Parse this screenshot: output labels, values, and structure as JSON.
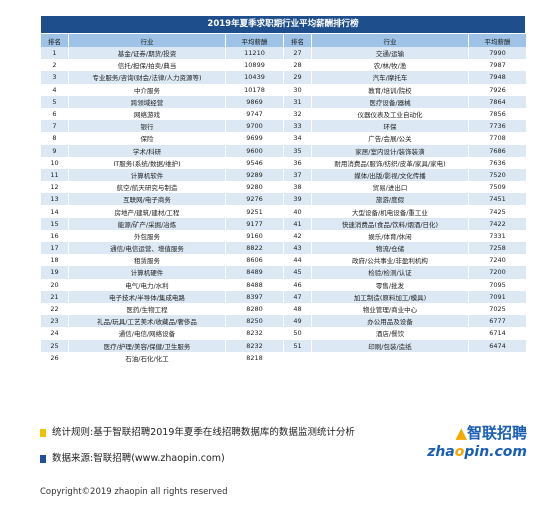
{
  "table": {
    "title": "2019年夏季求职期行业平均薪酬排行榜",
    "headers": [
      "排名",
      "行业",
      "平均薪酬",
      "排名",
      "行业",
      "平均薪酬"
    ],
    "left": [
      {
        "rank": "1",
        "industry": "基金/证券/期货/投资",
        "salary": "11210"
      },
      {
        "rank": "2",
        "industry": "信托/担保/拍卖/典当",
        "salary": "10899"
      },
      {
        "rank": "3",
        "industry": "专业服务/咨询(财会/法律/人力资源等)",
        "salary": "10439"
      },
      {
        "rank": "4",
        "industry": "中介服务",
        "salary": "10178"
      },
      {
        "rank": "5",
        "industry": "跨领域经营",
        "salary": "9869"
      },
      {
        "rank": "6",
        "industry": "网络游戏",
        "salary": "9747"
      },
      {
        "rank": "7",
        "industry": "银行",
        "salary": "9700"
      },
      {
        "rank": "8",
        "industry": "保险",
        "salary": "9699"
      },
      {
        "rank": "9",
        "industry": "学术/科研",
        "salary": "9600"
      },
      {
        "rank": "10",
        "industry": "IT服务(系统/数据/维护)",
        "salary": "9546"
      },
      {
        "rank": "11",
        "industry": "计算机软件",
        "salary": "9289"
      },
      {
        "rank": "12",
        "industry": "航空/航天研究与制造",
        "salary": "9280"
      },
      {
        "rank": "13",
        "industry": "互联网/电子商务",
        "salary": "9276"
      },
      {
        "rank": "14",
        "industry": "房地产/建筑/建材/工程",
        "salary": "9251"
      },
      {
        "rank": "15",
        "industry": "能源/矿产/采掘/冶炼",
        "salary": "9177"
      },
      {
        "rank": "16",
        "industry": "外包服务",
        "salary": "9160"
      },
      {
        "rank": "17",
        "industry": "通信/电信运营、增值服务",
        "salary": "8822"
      },
      {
        "rank": "18",
        "industry": "租赁服务",
        "salary": "8606"
      },
      {
        "rank": "19",
        "industry": "计算机硬件",
        "salary": "8489"
      },
      {
        "rank": "20",
        "industry": "电气/电力/水利",
        "salary": "8488"
      },
      {
        "rank": "21",
        "industry": "电子技术/半导体/集成电路",
        "salary": "8397"
      },
      {
        "rank": "22",
        "industry": "医药/生物工程",
        "salary": "8280"
      },
      {
        "rank": "23",
        "industry": "礼品/玩具/工艺美术/收藏品/奢侈品",
        "salary": "8250"
      },
      {
        "rank": "24",
        "industry": "通信/电信/网络设备",
        "salary": "8232"
      },
      {
        "rank": "25",
        "industry": "医疗/护理/美容/保健/卫生服务",
        "salary": "8232"
      },
      {
        "rank": "26",
        "industry": "石油/石化/化工",
        "salary": "8218"
      }
    ],
    "right": [
      {
        "rank": "27",
        "industry": "交通/运输",
        "salary": "7990"
      },
      {
        "rank": "28",
        "industry": "农/林/牧/渔",
        "salary": "7987"
      },
      {
        "rank": "29",
        "industry": "汽车/摩托车",
        "salary": "7948"
      },
      {
        "rank": "30",
        "industry": "教育/培训/院校",
        "salary": "7926"
      },
      {
        "rank": "31",
        "industry": "医疗设备/器械",
        "salary": "7864"
      },
      {
        "rank": "32",
        "industry": "仪器仪表及工业自动化",
        "salary": "7856"
      },
      {
        "rank": "33",
        "industry": "环保",
        "salary": "7736"
      },
      {
        "rank": "34",
        "industry": "广告/会展/公关",
        "salary": "7708"
      },
      {
        "rank": "35",
        "industry": "家居/室内设计/装饰装潢",
        "salary": "7686"
      },
      {
        "rank": "36",
        "industry": "耐用消费品(服饰/纺织/皮革/家具/家电)",
        "salary": "7636"
      },
      {
        "rank": "37",
        "industry": "媒体/出版/影视/文化传播",
        "salary": "7520"
      },
      {
        "rank": "38",
        "industry": "贸易/进出口",
        "salary": "7509"
      },
      {
        "rank": "39",
        "industry": "旅游/度假",
        "salary": "7451"
      },
      {
        "rank": "40",
        "industry": "大型设备/机电设备/重工业",
        "salary": "7425"
      },
      {
        "rank": "41",
        "industry": "快速消费品(食品/饮料/烟酒/日化)",
        "salary": "7422"
      },
      {
        "rank": "42",
        "industry": "娱乐/体育/休闲",
        "salary": "7331"
      },
      {
        "rank": "43",
        "industry": "物流/仓储",
        "salary": "7258"
      },
      {
        "rank": "44",
        "industry": "政府/公共事业/非盈利机构",
        "salary": "7240"
      },
      {
        "rank": "45",
        "industry": "检验/检测/认证",
        "salary": "7200"
      },
      {
        "rank": "46",
        "industry": "零售/批发",
        "salary": "7095"
      },
      {
        "rank": "47",
        "industry": "加工制造(原料加工/模具)",
        "salary": "7091"
      },
      {
        "rank": "48",
        "industry": "物业管理/商业中心",
        "salary": "7025"
      },
      {
        "rank": "49",
        "industry": "办公用品及设备",
        "salary": "6777"
      },
      {
        "rank": "50",
        "industry": "酒店/餐饮",
        "salary": "6714"
      },
      {
        "rank": "51",
        "industry": "印刷/包装/造纸",
        "salary": "6474"
      },
      {
        "rank": "",
        "industry": "",
        "salary": ""
      }
    ]
  },
  "notes": {
    "method": "统计规则:基于智联招聘2019年夏季在线招聘数据库的数据监测统计分析",
    "source": "数据来源:智联招聘(www.zhaopin.com)"
  },
  "colors": {
    "header_bar": "#1f4e8c",
    "column_header": "#9ec3e6",
    "row_stripe": "#dce8f4",
    "bullet_yellow": "#f2c200",
    "bullet_blue": "#1f4e9c"
  },
  "logo": {
    "cn": "智联招聘",
    "en_prefix": "zha",
    "en_o": "o",
    "en_suffix": "pin.com"
  },
  "copyright": "Copyright©2019 zhaopin all rights reserved"
}
